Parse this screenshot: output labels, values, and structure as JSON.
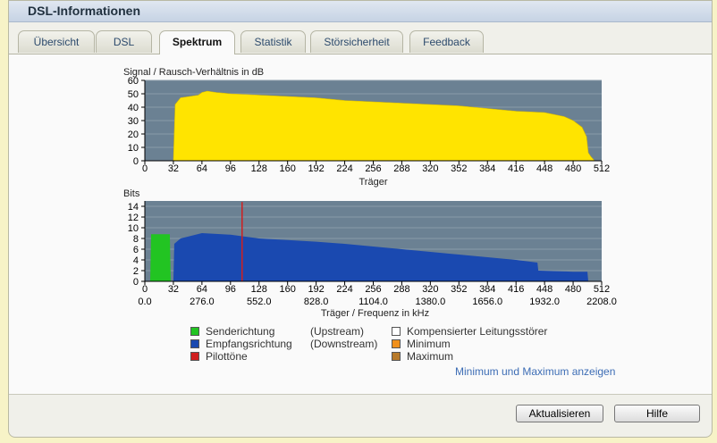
{
  "window": {
    "title": "DSL-Informationen"
  },
  "tabs": [
    {
      "label": "Übersicht",
      "active": false
    },
    {
      "label": "DSL",
      "active": false
    },
    {
      "label": "Spektrum",
      "active": true
    },
    {
      "label": "Statistik",
      "active": false
    },
    {
      "label": "Störsicherheit",
      "active": false
    },
    {
      "label": "Feedback",
      "active": false
    }
  ],
  "chart_data": [
    {
      "type": "area",
      "title": "Signal / Rausch-Verhältnis in dB",
      "xlabel": "Träger",
      "ylabel": "",
      "xlim": [
        0,
        512
      ],
      "ylim": [
        0,
        60
      ],
      "xticks": [
        0,
        32,
        64,
        96,
        128,
        160,
        192,
        224,
        256,
        288,
        320,
        352,
        384,
        416,
        448,
        480,
        512
      ],
      "yticks": [
        0,
        10,
        20,
        30,
        40,
        50,
        60
      ],
      "grid": true,
      "colors": {
        "fill": "#ffe400",
        "background": "#6b8193"
      },
      "series": [
        {
          "x": [
            32,
            34,
            40,
            50,
            60,
            64,
            70,
            80,
            96,
            128,
            160,
            192,
            224,
            256,
            288,
            320,
            352,
            384,
            416,
            448,
            470,
            480,
            490,
            495,
            497,
            500,
            504
          ],
          "y": [
            0,
            42,
            47,
            48,
            49,
            51,
            52,
            51,
            50,
            49,
            48,
            47,
            45,
            44,
            43,
            42,
            41,
            39,
            37,
            36,
            33,
            30,
            25,
            18,
            6,
            3,
            0
          ]
        }
      ]
    },
    {
      "type": "area",
      "title": "Bits",
      "xlabel": "Träger / Frequenz in kHz",
      "ylabel": "",
      "xlim": [
        0,
        512
      ],
      "ylim": [
        0,
        15
      ],
      "xticks": [
        0,
        32,
        64,
        96,
        128,
        160,
        192,
        224,
        256,
        288,
        320,
        352,
        384,
        416,
        448,
        480,
        512
      ],
      "xticks_secondary": [
        "0.0",
        "276.0",
        "552.0",
        "828.0",
        "1104.0",
        "1380.0",
        "1656.0",
        "1932.0",
        "2208.0"
      ],
      "yticks": [
        0,
        2,
        4,
        6,
        8,
        10,
        12,
        14
      ],
      "grid": true,
      "colors": {
        "upstream": "#22c422",
        "downstream": "#1a49b0",
        "pilot": "#d02020",
        "background": "#6b8193"
      },
      "series": [
        {
          "name": "Senderichtung",
          "x": [
            6,
            7,
            12,
            28,
            29
          ],
          "y": [
            0,
            8.8,
            8.8,
            8.8,
            0
          ]
        },
        {
          "name": "Empfangsrichtung",
          "x": [
            32,
            33,
            40,
            64,
            96,
            128,
            160,
            192,
            224,
            256,
            288,
            320,
            352,
            384,
            416,
            440,
            441,
            480,
            496,
            497
          ],
          "y": [
            0,
            7,
            8,
            9,
            8.7,
            8,
            7.7,
            7.4,
            7,
            6.5,
            6,
            5.5,
            5,
            4.5,
            4,
            3.5,
            2,
            1.8,
            1.8,
            0
          ]
        },
        {
          "name": "Pilottöne",
          "x": [
            109
          ],
          "y": [
            14.8
          ]
        }
      ]
    }
  ],
  "legend": {
    "items": [
      {
        "label": "Senderichtung",
        "extra": "(Upstream)",
        "color": "#22c422"
      },
      {
        "label": "Empfangsrichtung",
        "extra": "(Downstream)",
        "color": "#1a49b0"
      },
      {
        "label": "Pilottöne",
        "extra": "",
        "color": "#d02020"
      },
      {
        "label": "Kompensierter Leitungsstörer",
        "extra": "",
        "color": "#ffffff"
      },
      {
        "label": "Minimum",
        "extra": "",
        "color": "#f0901c"
      },
      {
        "label": "Maximum",
        "extra": "",
        "color": "#b87a2a"
      }
    ]
  },
  "link_label": "Minimum und Maximum anzeigen",
  "buttons": {
    "refresh": "Aktualisieren",
    "help": "Hilfe"
  }
}
